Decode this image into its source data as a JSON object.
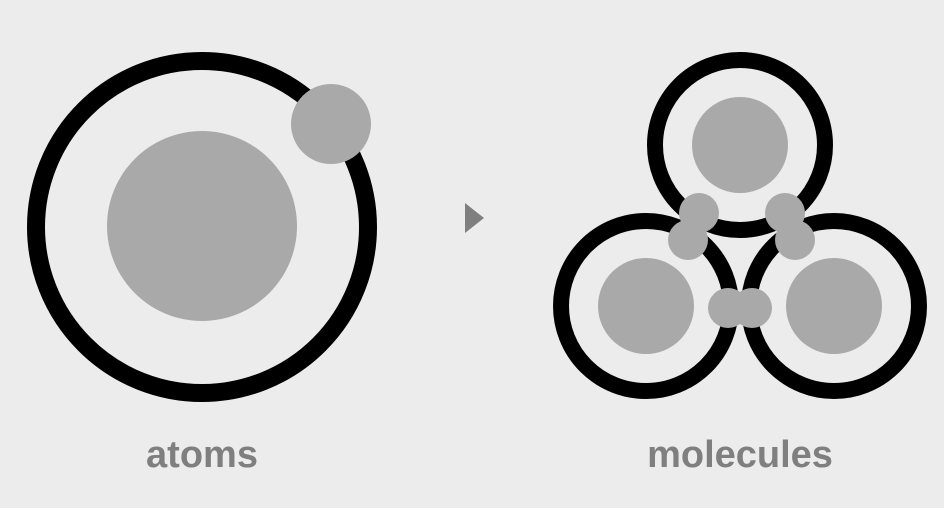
{
  "labels": {
    "atoms": "atoms",
    "molecules": "molecules"
  },
  "colors": {
    "background": "#ececec",
    "ring": "#000000",
    "particle": "#a9a9a9",
    "label": "#7f7f7f",
    "arrow": "#7f7f7f"
  },
  "icons": {
    "arrow": "right-triangle-arrow"
  }
}
